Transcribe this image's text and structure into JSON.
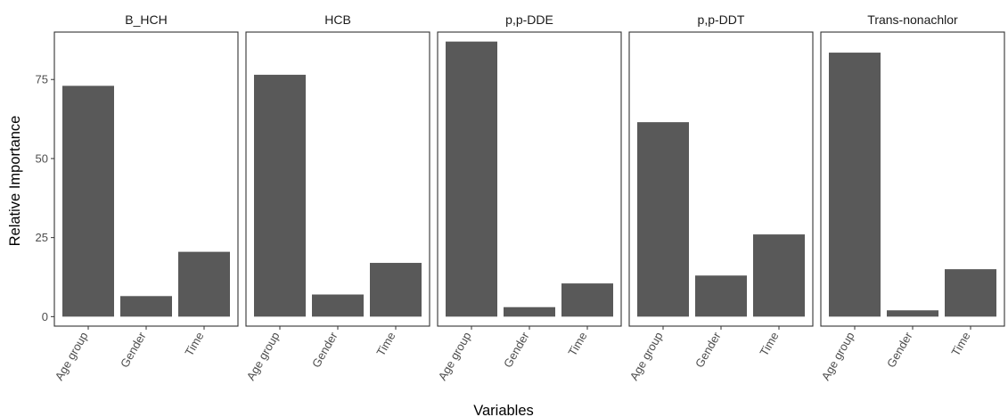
{
  "chart_data": {
    "type": "bar",
    "xlabel": "Variables",
    "ylabel": "Relative Importance",
    "ylim": [
      -3,
      90
    ],
    "yticks": [
      0,
      25,
      50,
      75
    ],
    "categories": [
      "Age group",
      "Gender",
      "Time"
    ],
    "bar_color": "#595959",
    "grid": false,
    "panels": [
      {
        "name": "B_HCH",
        "values": [
          73,
          6.5,
          20.5
        ]
      },
      {
        "name": "HCB",
        "values": [
          76.5,
          7,
          17
        ]
      },
      {
        "name": "p,p-DDE",
        "values": [
          87,
          3,
          10.5
        ]
      },
      {
        "name": "p,p-DDT",
        "values": [
          61.5,
          13,
          26
        ]
      },
      {
        "name": "Trans-nonachlor",
        "values": [
          83.5,
          2,
          15
        ]
      }
    ]
  }
}
